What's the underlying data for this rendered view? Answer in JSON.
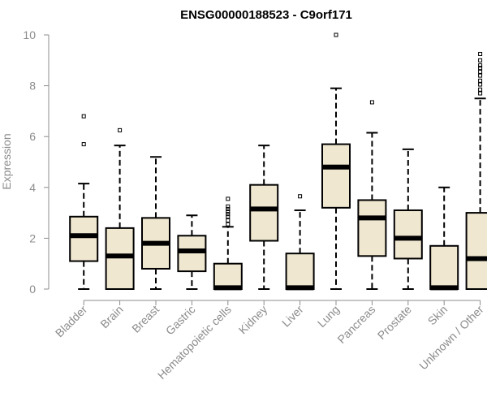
{
  "chart_data": {
    "type": "boxplot",
    "title": "ENSG00000188523 - C9orf171",
    "xlabel": "",
    "ylabel": "Expression",
    "ylim": [
      0,
      10
    ],
    "yticks": [
      0,
      2,
      4,
      6,
      8,
      10
    ],
    "grid": false,
    "colors": {
      "box_fill": "#efe7d0",
      "box_stroke": "#000000",
      "axis": "#8c8c8c"
    },
    "categories": [
      "Bladder",
      "Brain",
      "Breast",
      "Gastric",
      "Hematopoietic cells",
      "Kidney",
      "Liver",
      "Lung",
      "Pancreas",
      "Prostate",
      "Skin",
      "Unknown / Other"
    ],
    "boxes": [
      {
        "category": "Bladder",
        "whisker_low": 0.0,
        "q1": 1.1,
        "median": 2.1,
        "q3": 2.85,
        "whisker_high": 4.15,
        "outliers": [
          5.7,
          6.8
        ]
      },
      {
        "category": "Brain",
        "whisker_low": 0.0,
        "q1": 0.0,
        "median": 1.3,
        "q3": 2.4,
        "whisker_high": 5.65,
        "outliers": [
          6.25
        ]
      },
      {
        "category": "Breast",
        "whisker_low": 0.0,
        "q1": 0.8,
        "median": 1.8,
        "q3": 2.8,
        "whisker_high": 5.2,
        "outliers": []
      },
      {
        "category": "Gastric",
        "whisker_low": 0.0,
        "q1": 0.7,
        "median": 1.5,
        "q3": 2.1,
        "whisker_high": 2.9,
        "outliers": []
      },
      {
        "category": "Hematopoietic cells",
        "whisker_low": 0.0,
        "q1": 0.0,
        "median": 0.05,
        "q3": 1.0,
        "whisker_high": 2.45,
        "outliers": [
          2.55,
          2.7,
          2.85,
          2.95,
          3.05,
          3.15,
          3.25,
          3.55
        ]
      },
      {
        "category": "Kidney",
        "whisker_low": 0.0,
        "q1": 1.9,
        "median": 3.15,
        "q3": 4.1,
        "whisker_high": 5.65,
        "outliers": []
      },
      {
        "category": "Liver",
        "whisker_low": 0.0,
        "q1": 0.0,
        "median": 0.05,
        "q3": 1.4,
        "whisker_high": 3.1,
        "outliers": [
          3.65
        ]
      },
      {
        "category": "Lung",
        "whisker_low": 0.0,
        "q1": 3.2,
        "median": 4.8,
        "q3": 5.7,
        "whisker_high": 7.9,
        "outliers": [
          10.0
        ]
      },
      {
        "category": "Pancreas",
        "whisker_low": 0.0,
        "q1": 1.3,
        "median": 2.8,
        "q3": 3.5,
        "whisker_high": 6.15,
        "outliers": [
          7.35
        ]
      },
      {
        "category": "Prostate",
        "whisker_low": 0.0,
        "q1": 1.2,
        "median": 2.0,
        "q3": 3.1,
        "whisker_high": 5.5,
        "outliers": []
      },
      {
        "category": "Skin",
        "whisker_low": 0.0,
        "q1": 0.0,
        "median": 0.05,
        "q3": 1.7,
        "whisker_high": 4.0,
        "outliers": []
      },
      {
        "category": "Unknown / Other",
        "whisker_low": 0.0,
        "q1": 0.0,
        "median": 1.2,
        "q3": 3.0,
        "whisker_high": 7.5,
        "outliers": [
          7.7,
          7.85,
          8.05,
          8.2,
          8.4,
          8.55,
          8.7,
          8.8,
          9.0,
          9.25
        ]
      }
    ]
  }
}
